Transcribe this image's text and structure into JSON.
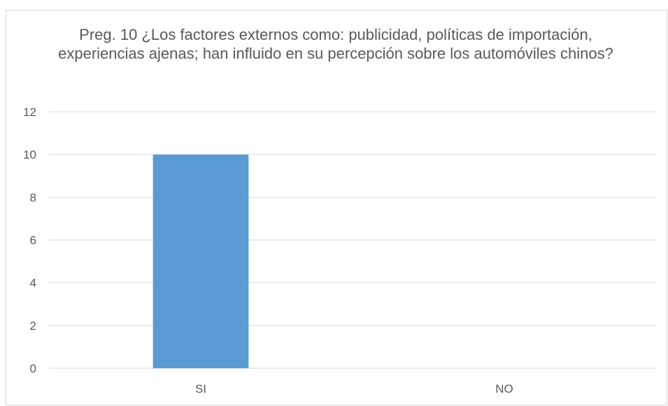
{
  "chart_data": {
    "type": "bar",
    "title": "Preg. 10 ¿Los factores externos como: publicidad, políticas de importación, experiencias ajenas; han influido en su percepción sobre los automóviles chinos?",
    "categories": [
      "SI",
      "NO"
    ],
    "values": [
      10,
      0
    ],
    "ylim": [
      0,
      12
    ],
    "yticks": [
      "0",
      "2",
      "4",
      "6",
      "8",
      "10",
      "12"
    ],
    "xlabel": "",
    "ylabel": "",
    "grid": true,
    "legend": "none",
    "bar_color": "#5b9bd5",
    "grid_color": "#d9d9d9",
    "text_color": "#595959"
  }
}
